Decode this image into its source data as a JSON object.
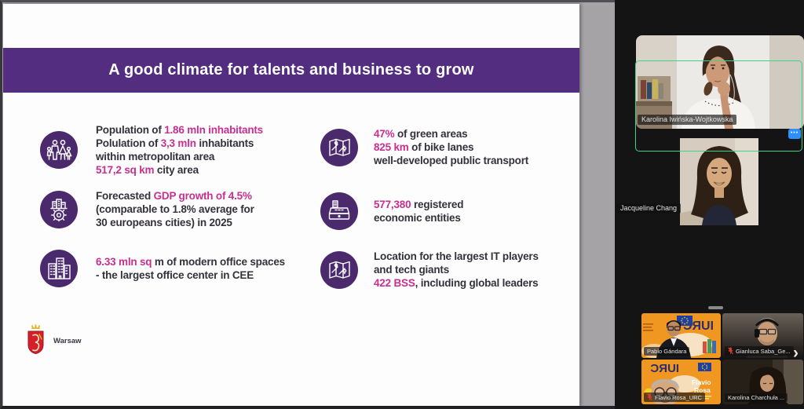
{
  "slide": {
    "title": "A good climate for talents and business to grow",
    "colors": {
      "header_purple": "#522d80",
      "icon_circle_purple": "#4b296d",
      "accent_pink": "#c72f90",
      "body_text": "#35313b",
      "app_canvas_gray": "#a6a3a6"
    },
    "rows_left": [
      {
        "icon": "family-icon",
        "segments": [
          {
            "t": "Population of ",
            "a": false
          },
          {
            "t": "1.86 mln inhabitants",
            "a": true
          },
          {
            "br": true
          },
          {
            "t": "Polulation of ",
            "a": false
          },
          {
            "t": "3,3 mln",
            "a": true
          },
          {
            "t": " inhabitants",
            "a": false
          },
          {
            "br": true
          },
          {
            "t": "within metropolitan area",
            "a": false
          },
          {
            "br": true
          },
          {
            "t": "517,2 sq km",
            "a": true
          },
          {
            "t": " city area",
            "a": false
          }
        ]
      },
      {
        "icon": "city-gear-icon",
        "segments": [
          {
            "t": "Forecasted ",
            "a": false
          },
          {
            "t": "GDP growth of 4.5%",
            "a": true
          },
          {
            "br": true
          },
          {
            "t": "(comparable to 1.8% average for",
            "a": false
          },
          {
            "br": true
          },
          {
            "t": "30 europeans cities) in 2025",
            "a": false
          }
        ]
      },
      {
        "icon": "office-buildings-icon",
        "segments": [
          {
            "t": "6.33 mln sq",
            "a": true
          },
          {
            "t": " m of modern office spaces",
            "a": false
          },
          {
            "br": true
          },
          {
            "t": "- the largest office center in CEE",
            "a": false
          }
        ]
      }
    ],
    "rows_right": [
      {
        "icon": "map-pins-icon",
        "segments": [
          {
            "t": "47%",
            "a": true
          },
          {
            "t": " of green areas",
            "a": false
          },
          {
            "br": true
          },
          {
            "t": "825 km",
            "a": true
          },
          {
            "t": " of bike lanes",
            "a": false
          },
          {
            "br": true
          },
          {
            "t": "well-developed public transport",
            "a": false
          }
        ]
      },
      {
        "icon": "cash-register-icon",
        "segments": [
          {
            "t": "577,380",
            "a": true
          },
          {
            "t": " registered",
            "a": false
          },
          {
            "br": true
          },
          {
            "t": "economic entities",
            "a": false
          }
        ]
      },
      {
        "icon": "map-pins-icon",
        "segments": [
          {
            "t": "Location for the largest IT players",
            "a": false
          },
          {
            "br": true
          },
          {
            "t": "and tech giants",
            "a": false
          },
          {
            "br": true
          },
          {
            "t": "422 BSS",
            "a": true
          },
          {
            "t": ", including global leaders",
            "a": false
          }
        ]
      }
    ],
    "logo": {
      "label": "Warsaw",
      "shield_red": "#d3202a",
      "crown_gold": "#e8b524"
    }
  },
  "video_panel": {
    "active_speaker_border": "#3bd48a",
    "more_button_label": "•••",
    "next_button_label": "›",
    "participants": [
      {
        "name": "Karolina Iwińska-Wojtkowska",
        "active_speaker": true,
        "muted": false
      },
      {
        "name": "Jacqueline Chang",
        "active_speaker": false,
        "muted": false
      },
      {
        "name": "Pablo Gándara",
        "active_speaker": false,
        "muted": false
      },
      {
        "name": "Gianluca Saba_Ge...",
        "active_speaker": false,
        "muted": true
      },
      {
        "name": "Flavio Rosa_URC",
        "active_speaker": false,
        "muted": true
      },
      {
        "name": "Karolina Charchuła ...",
        "active_speaker": false,
        "muted": false
      }
    ],
    "background_texts": {
      "iurc_logo": "IURC",
      "flavio_overlay_line1": "Flavio",
      "flavio_overlay_line2": "Rosa"
    }
  }
}
